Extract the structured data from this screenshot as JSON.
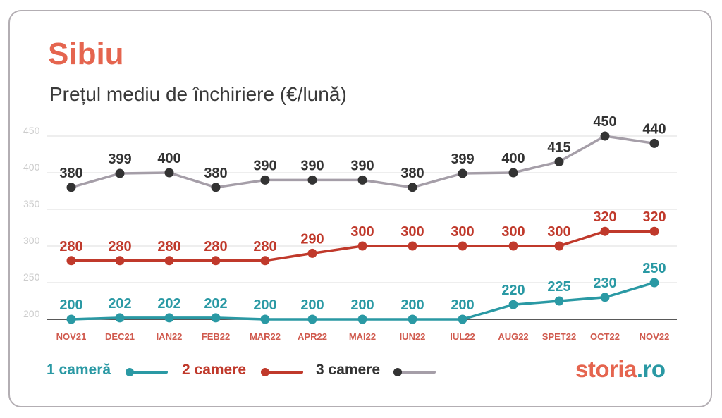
{
  "page": {
    "title": "Sibiu",
    "subtitle": "Prețul mediu de închiriere (€/lună)"
  },
  "colors": {
    "title": "#e5654f",
    "one_room": "#2a99a4",
    "two_rooms": "#c0392b",
    "three_rooms_line": "#a59ea8",
    "three_rooms_marker": "#333333",
    "grid": "#dddddd",
    "axis_tick": "#cccccc",
    "category": "#d05a4e"
  },
  "legend": {
    "one_room": "1 cameră",
    "two_rooms": "2 camere",
    "three_rooms": "3 camere"
  },
  "logo": {
    "part1": "storia",
    "part2": ".ro"
  },
  "chart_data": {
    "type": "line",
    "title": "Sibiu",
    "subtitle": "Prețul mediu de închiriere (€/lună)",
    "categories": [
      "NOV21",
      "DEC21",
      "IAN22",
      "FEB22",
      "MAR22",
      "APR22",
      "MAI22",
      "IUN22",
      "IUL22",
      "AUG22",
      "SPET22",
      "OCT22",
      "NOV22"
    ],
    "yticks": [
      200,
      250,
      300,
      350,
      400,
      450
    ],
    "ylim": [
      200,
      450
    ],
    "grid": true,
    "legend_position": "bottom-left",
    "series": [
      {
        "name": "1 cameră",
        "key": "one_room",
        "values": [
          200,
          202,
          202,
          202,
          200,
          200,
          200,
          200,
          200,
          220,
          225,
          230,
          250
        ]
      },
      {
        "name": "2 camere",
        "key": "two_rooms",
        "values": [
          280,
          280,
          280,
          280,
          280,
          290,
          300,
          300,
          300,
          300,
          300,
          320,
          320
        ]
      },
      {
        "name": "3 camere",
        "key": "three_rooms",
        "values": [
          380,
          399,
          400,
          380,
          390,
          390,
          390,
          380,
          399,
          400,
          415,
          450,
          440
        ]
      }
    ]
  }
}
